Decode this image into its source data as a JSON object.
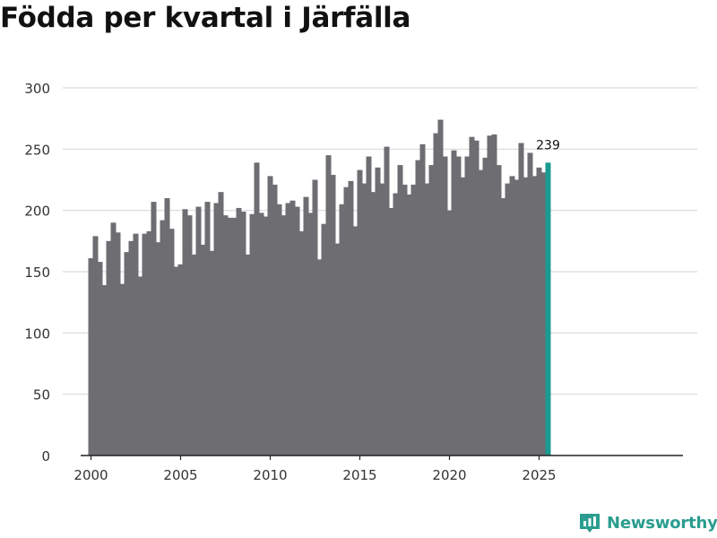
{
  "chart_data": {
    "type": "bar",
    "title": "Födda per kvartal i Järfälla",
    "xlabel": "",
    "ylabel": "",
    "ylim": [
      0,
      300
    ],
    "yticks": [
      0,
      50,
      100,
      150,
      200,
      250,
      300
    ],
    "xticks": [
      2000,
      2005,
      2010,
      2015,
      2020,
      2025
    ],
    "grid": true,
    "x_start": 2000,
    "periods_per_year": 4,
    "values": [
      161,
      179,
      158,
      139,
      175,
      190,
      182,
      140,
      166,
      175,
      181,
      146,
      181,
      183,
      207,
      174,
      192,
      210,
      185,
      154,
      156,
      201,
      196,
      164,
      203,
      172,
      207,
      167,
      206,
      215,
      196,
      194,
      194,
      202,
      199,
      164,
      197,
      239,
      198,
      195,
      228,
      221,
      205,
      196,
      206,
      208,
      203,
      183,
      211,
      198,
      225,
      160,
      189,
      245,
      229,
      173,
      205,
      219,
      224,
      187,
      233,
      222,
      244,
      215,
      235,
      222,
      252,
      202,
      214,
      237,
      221,
      213,
      221,
      241,
      254,
      222,
      237,
      263,
      274,
      244,
      200,
      249,
      244,
      227,
      244,
      260,
      257,
      233,
      243,
      261,
      262,
      237,
      210,
      222,
      228,
      225,
      255,
      227,
      247,
      228,
      235,
      231,
      239
    ],
    "highlight_last": true,
    "highlight_label": "239",
    "colors": {
      "bar": "#6d6d72",
      "highlight": "#1a9a90",
      "grid": "#d9d9d9",
      "axis": "#222222",
      "text": "#333333"
    }
  },
  "brand": {
    "name": "Newsworthy",
    "color": "#2a9d8f",
    "icon": "newsworthy-logo-icon"
  }
}
